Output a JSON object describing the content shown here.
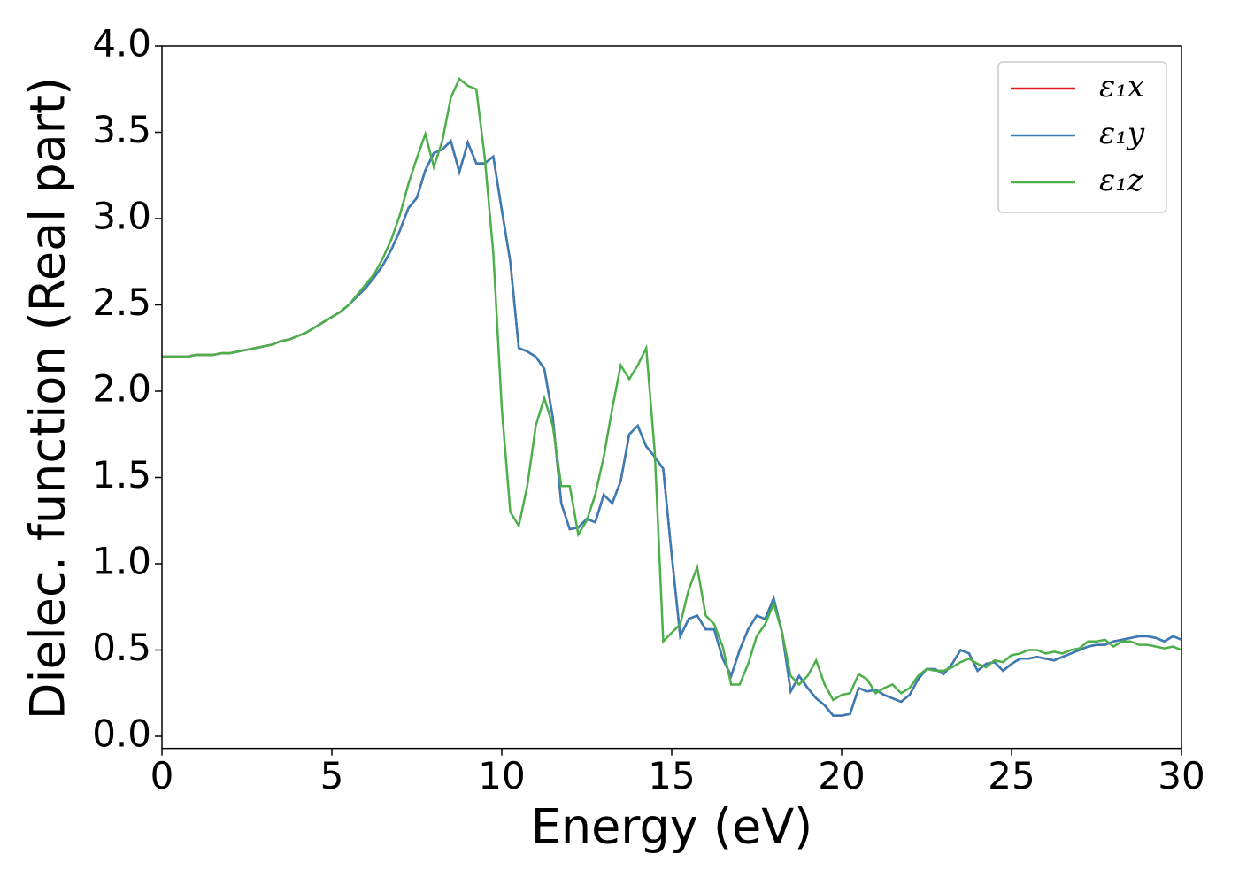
{
  "chart_data": {
    "type": "line",
    "xlabel": "Energy (eV)",
    "ylabel": "Dielec. function (Real part)",
    "x": [
      0,
      0.25,
      0.5,
      0.75,
      1,
      1.25,
      1.5,
      1.75,
      2,
      2.25,
      2.5,
      2.75,
      3,
      3.25,
      3.5,
      3.75,
      4,
      4.25,
      4.5,
      4.75,
      5,
      5.25,
      5.5,
      5.75,
      6,
      6.25,
      6.5,
      6.75,
      7,
      7.25,
      7.5,
      7.75,
      8,
      8.25,
      8.5,
      8.75,
      9,
      9.25,
      9.5,
      9.75,
      10,
      10.25,
      10.5,
      10.75,
      11,
      11.25,
      11.5,
      11.75,
      12,
      12.25,
      12.5,
      12.75,
      13,
      13.25,
      13.5,
      13.75,
      14,
      14.25,
      14.5,
      14.75,
      15,
      15.25,
      15.5,
      15.75,
      16,
      16.25,
      16.5,
      16.75,
      17,
      17.25,
      17.5,
      17.75,
      18,
      18.25,
      18.5,
      18.75,
      19,
      19.25,
      19.5,
      19.75,
      20,
      20.25,
      20.5,
      20.75,
      21,
      21.25,
      21.5,
      21.75,
      22,
      22.25,
      22.5,
      22.75,
      23,
      23.25,
      23.5,
      23.75,
      24,
      24.25,
      24.5,
      24.75,
      25,
      25.25,
      25.5,
      25.75,
      26,
      26.25,
      26.5,
      26.75,
      27,
      27.25,
      27.5,
      27.75,
      28,
      28.25,
      28.5,
      28.75,
      29,
      29.25,
      29.5,
      29.75,
      30
    ],
    "series": [
      {
        "name": "ε₁x",
        "color": "#e41a1c",
        "values": [
          2.2,
          2.2,
          2.2,
          2.2,
          2.21,
          2.21,
          2.21,
          2.22,
          2.22,
          2.23,
          2.24,
          2.25,
          2.26,
          2.27,
          2.29,
          2.3,
          2.32,
          2.34,
          2.37,
          2.4,
          2.43,
          2.46,
          2.5,
          2.55,
          2.6,
          2.66,
          2.73,
          2.82,
          2.93,
          3.06,
          3.12,
          3.28,
          3.38,
          3.4,
          3.45,
          3.27,
          3.44,
          3.32,
          3.32,
          3.36,
          3.05,
          2.75,
          2.25,
          2.23,
          2.2,
          2.13,
          1.85,
          1.35,
          1.2,
          1.21,
          1.26,
          1.24,
          1.4,
          1.35,
          1.48,
          1.75,
          1.8,
          1.68,
          1.62,
          1.55,
          1.05,
          0.58,
          0.68,
          0.7,
          0.62,
          0.62,
          0.45,
          0.35,
          0.5,
          0.62,
          0.7,
          0.68,
          0.8,
          0.6,
          0.26,
          0.35,
          0.28,
          0.22,
          0.18,
          0.12,
          0.12,
          0.13,
          0.28,
          0.26,
          0.27,
          0.24,
          0.22,
          0.2,
          0.24,
          0.33,
          0.39,
          0.39,
          0.36,
          0.42,
          0.5,
          0.48,
          0.38,
          0.42,
          0.43,
          0.38,
          0.42,
          0.45,
          0.45,
          0.46,
          0.45,
          0.44,
          0.46,
          0.48,
          0.5,
          0.52,
          0.53,
          0.53,
          0.55,
          0.56,
          0.57,
          0.58,
          0.58,
          0.57,
          0.55,
          0.58,
          0.56
        ]
      },
      {
        "name": "ε₁y",
        "color": "#377eb8",
        "values": [
          2.2,
          2.2,
          2.2,
          2.2,
          2.21,
          2.21,
          2.21,
          2.22,
          2.22,
          2.23,
          2.24,
          2.25,
          2.26,
          2.27,
          2.29,
          2.3,
          2.32,
          2.34,
          2.37,
          2.4,
          2.43,
          2.46,
          2.5,
          2.55,
          2.6,
          2.66,
          2.73,
          2.82,
          2.93,
          3.06,
          3.12,
          3.28,
          3.38,
          3.4,
          3.45,
          3.27,
          3.44,
          3.32,
          3.32,
          3.36,
          3.05,
          2.75,
          2.25,
          2.23,
          2.2,
          2.13,
          1.85,
          1.35,
          1.2,
          1.21,
          1.26,
          1.24,
          1.4,
          1.35,
          1.48,
          1.75,
          1.8,
          1.68,
          1.62,
          1.55,
          1.05,
          0.58,
          0.68,
          0.7,
          0.62,
          0.62,
          0.45,
          0.35,
          0.5,
          0.62,
          0.7,
          0.68,
          0.8,
          0.6,
          0.26,
          0.35,
          0.28,
          0.22,
          0.18,
          0.12,
          0.12,
          0.13,
          0.28,
          0.26,
          0.27,
          0.24,
          0.22,
          0.2,
          0.24,
          0.33,
          0.39,
          0.39,
          0.36,
          0.42,
          0.5,
          0.48,
          0.38,
          0.42,
          0.43,
          0.38,
          0.42,
          0.45,
          0.45,
          0.46,
          0.45,
          0.44,
          0.46,
          0.48,
          0.5,
          0.52,
          0.53,
          0.53,
          0.55,
          0.56,
          0.57,
          0.58,
          0.58,
          0.57,
          0.55,
          0.58,
          0.56
        ]
      },
      {
        "name": "ε₁z",
        "color": "#4daf4a",
        "values": [
          2.2,
          2.2,
          2.2,
          2.2,
          2.21,
          2.21,
          2.21,
          2.22,
          2.22,
          2.23,
          2.24,
          2.25,
          2.26,
          2.27,
          2.29,
          2.3,
          2.32,
          2.34,
          2.37,
          2.4,
          2.43,
          2.46,
          2.5,
          2.56,
          2.62,
          2.68,
          2.77,
          2.88,
          3.02,
          3.2,
          3.35,
          3.49,
          3.3,
          3.45,
          3.7,
          3.81,
          3.77,
          3.75,
          3.35,
          2.8,
          1.9,
          1.3,
          1.22,
          1.45,
          1.8,
          1.96,
          1.8,
          1.45,
          1.45,
          1.17,
          1.25,
          1.4,
          1.62,
          1.9,
          2.15,
          2.07,
          2.15,
          2.25,
          1.65,
          0.55,
          0.6,
          0.65,
          0.85,
          0.98,
          0.7,
          0.65,
          0.52,
          0.3,
          0.3,
          0.42,
          0.58,
          0.65,
          0.77,
          0.6,
          0.35,
          0.3,
          0.35,
          0.44,
          0.3,
          0.21,
          0.24,
          0.25,
          0.36,
          0.33,
          0.25,
          0.28,
          0.3,
          0.25,
          0.28,
          0.35,
          0.39,
          0.38,
          0.38,
          0.4,
          0.43,
          0.45,
          0.42,
          0.4,
          0.44,
          0.43,
          0.47,
          0.48,
          0.5,
          0.5,
          0.48,
          0.49,
          0.48,
          0.5,
          0.51,
          0.55,
          0.55,
          0.56,
          0.52,
          0.55,
          0.55,
          0.53,
          0.53,
          0.52,
          0.51,
          0.52,
          0.5
        ]
      }
    ],
    "xlim": [
      0,
      30
    ],
    "xticks": [
      0,
      5,
      10,
      15,
      20,
      25,
      30
    ],
    "ylim": [
      -0.07,
      4.0
    ],
    "yticks": [
      {
        "value": 0,
        "label": "0.0"
      },
      {
        "value": 0.5,
        "label": "0.5"
      },
      {
        "value": 1,
        "label": "1.0"
      },
      {
        "value": 1.5,
        "label": "1.5"
      },
      {
        "value": 2,
        "label": "2.0"
      },
      {
        "value": 2.5,
        "label": "2.5"
      },
      {
        "value": 3,
        "label": "3.0"
      },
      {
        "value": 3.5,
        "label": "3.5"
      },
      {
        "value": 4,
        "label": "4.0"
      }
    ],
    "grid": false,
    "legend": "upper right"
  }
}
